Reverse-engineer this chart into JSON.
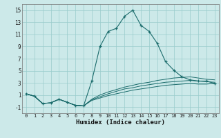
{
  "xlabel": "Humidex (Indice chaleur)",
  "ylabel": "",
  "background_color": "#cce9e9",
  "grid_color": "#99cccc",
  "line_color": "#1a6b6b",
  "xlim": [
    -0.5,
    23.5
  ],
  "ylim": [
    -2.0,
    16.0
  ],
  "yticks": [
    -1,
    1,
    3,
    5,
    7,
    9,
    11,
    13,
    15
  ],
  "xticks": [
    0,
    1,
    2,
    3,
    4,
    5,
    6,
    7,
    8,
    9,
    10,
    11,
    12,
    13,
    14,
    15,
    16,
    17,
    18,
    19,
    20,
    21,
    22,
    23
  ],
  "lines": [
    {
      "x": [
        0,
        1,
        2,
        3,
        4,
        5,
        6,
        7,
        8,
        9,
        10,
        11,
        12,
        13,
        14,
        15,
        16,
        17,
        18,
        19,
        20,
        21,
        22,
        23
      ],
      "y": [
        1.2,
        0.8,
        -0.4,
        -0.3,
        0.3,
        -0.2,
        -0.7,
        -0.8,
        3.3,
        9.0,
        11.5,
        12.0,
        14.0,
        15.0,
        12.5,
        11.5,
        9.5,
        6.5,
        5.1,
        4.0,
        3.5,
        3.3,
        3.3,
        2.9
      ],
      "marker": true
    },
    {
      "x": [
        0,
        1,
        2,
        3,
        4,
        5,
        6,
        7,
        8,
        9,
        10,
        11,
        12,
        13,
        14,
        15,
        16,
        17,
        18,
        19,
        20,
        21,
        22,
        23
      ],
      "y": [
        1.2,
        0.8,
        -0.4,
        -0.3,
        0.3,
        -0.2,
        -0.7,
        -0.8,
        0.3,
        1.0,
        1.5,
        1.9,
        2.3,
        2.6,
        2.9,
        3.1,
        3.4,
        3.6,
        3.8,
        3.9,
        4.0,
        3.8,
        3.6,
        3.5
      ],
      "marker": false
    },
    {
      "x": [
        0,
        1,
        2,
        3,
        4,
        5,
        6,
        7,
        8,
        9,
        10,
        11,
        12,
        13,
        14,
        15,
        16,
        17,
        18,
        19,
        20,
        21,
        22,
        23
      ],
      "y": [
        1.2,
        0.8,
        -0.4,
        -0.3,
        0.3,
        -0.2,
        -0.7,
        -0.8,
        0.2,
        0.7,
        1.2,
        1.6,
        2.0,
        2.2,
        2.5,
        2.7,
        2.9,
        3.1,
        3.2,
        3.3,
        3.4,
        3.3,
        3.2,
        3.1
      ],
      "marker": false
    },
    {
      "x": [
        0,
        1,
        2,
        3,
        4,
        5,
        6,
        7,
        8,
        9,
        10,
        11,
        12,
        13,
        14,
        15,
        16,
        17,
        18,
        19,
        20,
        21,
        22,
        23
      ],
      "y": [
        1.2,
        0.8,
        -0.4,
        -0.3,
        0.3,
        -0.2,
        -0.7,
        -0.8,
        0.1,
        0.5,
        0.9,
        1.2,
        1.5,
        1.8,
        2.0,
        2.2,
        2.4,
        2.6,
        2.7,
        2.8,
        2.9,
        2.8,
        2.8,
        2.9
      ],
      "marker": false
    }
  ]
}
